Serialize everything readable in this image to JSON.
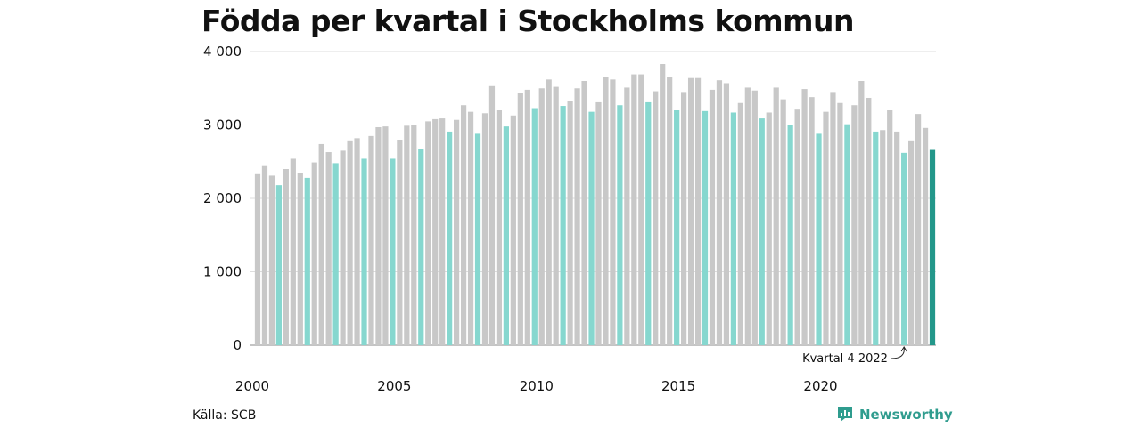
{
  "title": "Födda per kvartal i Stockholms kommun",
  "source": "Källa: SCB",
  "brand": {
    "name": "Newsworthy",
    "icon": "newsworthy-logo-icon",
    "color": "#2f9c8e"
  },
  "colors": {
    "other_quarters": "#c8c8c8",
    "q4": "#86d7cf",
    "latest": "#23978a",
    "grid": "#dddddd"
  },
  "annotation": {
    "text": "Kvartal 4 2022",
    "target_index": 91
  },
  "chart_data": {
    "type": "bar",
    "title": "Födda per kvartal i Stockholms kommun",
    "xlabel": "",
    "ylabel": "",
    "ylim": [
      0,
      4000
    ],
    "y_ticks": [
      {
        "value": 0,
        "label": "0"
      },
      {
        "value": 1000,
        "label": "1 000"
      },
      {
        "value": 2000,
        "label": "2 000"
      },
      {
        "value": 3000,
        "label": "3 000"
      },
      {
        "value": 4000,
        "label": "4 000"
      }
    ],
    "x_ticks": [
      {
        "index": 0,
        "label": "2000"
      },
      {
        "index": 20,
        "label": "2005"
      },
      {
        "index": 40,
        "label": "2010"
      },
      {
        "index": 60,
        "label": "2015"
      },
      {
        "index": 80,
        "label": "2020"
      }
    ],
    "grid": true,
    "legend": "none",
    "highlight": "Q4 bars in light teal, most recent quarter in dark teal",
    "categories": [
      "2000 K1",
      "2000 K2",
      "2000 K3",
      "2000 K4",
      "2001 K1",
      "2001 K2",
      "2001 K3",
      "2001 K4",
      "2002 K1",
      "2002 K2",
      "2002 K3",
      "2002 K4",
      "2003 K1",
      "2003 K2",
      "2003 K3",
      "2003 K4",
      "2004 K1",
      "2004 K2",
      "2004 K3",
      "2004 K4",
      "2005 K1",
      "2005 K2",
      "2005 K3",
      "2005 K4",
      "2006 K1",
      "2006 K2",
      "2006 K3",
      "2006 K4",
      "2007 K1",
      "2007 K2",
      "2007 K3",
      "2007 K4",
      "2008 K1",
      "2008 K2",
      "2008 K3",
      "2008 K4",
      "2009 K1",
      "2009 K2",
      "2009 K3",
      "2009 K4",
      "2010 K1",
      "2010 K2",
      "2010 K3",
      "2010 K4",
      "2011 K1",
      "2011 K2",
      "2011 K3",
      "2011 K4",
      "2012 K1",
      "2012 K2",
      "2012 K3",
      "2012 K4",
      "2013 K1",
      "2013 K2",
      "2013 K3",
      "2013 K4",
      "2014 K1",
      "2014 K2",
      "2014 K3",
      "2014 K4",
      "2015 K1",
      "2015 K2",
      "2015 K3",
      "2015 K4",
      "2016 K1",
      "2016 K2",
      "2016 K3",
      "2016 K4",
      "2017 K1",
      "2017 K2",
      "2017 K3",
      "2017 K4",
      "2018 K1",
      "2018 K2",
      "2018 K3",
      "2018 K4",
      "2019 K1",
      "2019 K2",
      "2019 K3",
      "2019 K4",
      "2020 K1",
      "2020 K2",
      "2020 K3",
      "2020 K4",
      "2021 K1",
      "2021 K2",
      "2021 K3",
      "2021 K4",
      "2022 K1",
      "2022 K2",
      "2022 K3",
      "2022 K4",
      "2023 K1",
      "2023 K2",
      "2023 K3",
      "2023 K4"
    ],
    "values": [
      2330,
      2440,
      2310,
      2180,
      2400,
      2540,
      2350,
      2280,
      2490,
      2740,
      2630,
      2480,
      2650,
      2790,
      2820,
      2540,
      2850,
      2970,
      2980,
      2540,
      2800,
      2990,
      3000,
      2670,
      3050,
      3080,
      3090,
      2910,
      3070,
      3270,
      3180,
      2880,
      3160,
      3530,
      3200,
      2980,
      3130,
      3440,
      3480,
      3230,
      3500,
      3620,
      3520,
      3260,
      3330,
      3500,
      3600,
      3180,
      3310,
      3660,
      3620,
      3270,
      3510,
      3690,
      3690,
      3310,
      3460,
      3830,
      3660,
      3200,
      3450,
      3640,
      3640,
      3190,
      3480,
      3610,
      3570,
      3170,
      3300,
      3510,
      3470,
      3090,
      3170,
      3510,
      3350,
      3000,
      3210,
      3490,
      3380,
      2880,
      3180,
      3450,
      3300,
      3010,
      3270,
      3600,
      3370,
      2910,
      2930,
      3200,
      2910,
      2620,
      2790,
      3150,
      2960,
      2660
    ]
  }
}
